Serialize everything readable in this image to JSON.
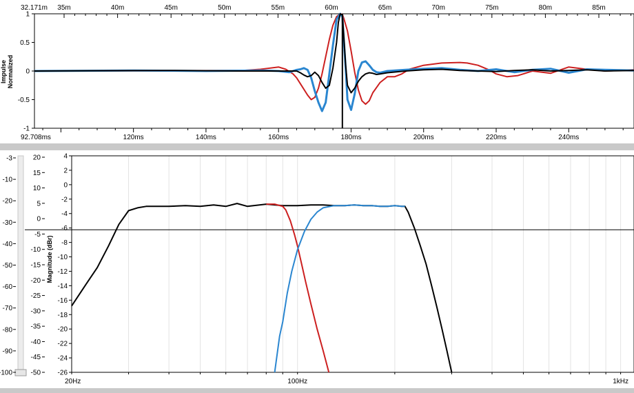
{
  "colors": {
    "red": "#cc1f1f",
    "blue": "#2a86d0",
    "black": "#000000",
    "splitter": "#c9c9c9",
    "grid": "#e3e3e3"
  },
  "chart_data": [
    {
      "type": "line",
      "name": "impulse",
      "ylabel_line1": "Impulse",
      "ylabel_line2": "Normalized",
      "ylim": [
        -1,
        1
      ],
      "y_ticks": [
        "1",
        "0.5",
        "0",
        "-0.5",
        "-1"
      ],
      "top_axis": {
        "unit": "m",
        "first_label": "32.171m",
        "ticks": [
          "35m",
          "40m",
          "45m",
          "50m",
          "55m",
          "60m",
          "65m",
          "70m",
          "75m",
          "80m",
          "85m"
        ]
      },
      "bottom_axis": {
        "unit": "ms",
        "range": [
          92.708,
          258
        ],
        "first_label": "92.708ms",
        "ticks": [
          "120ms",
          "140ms",
          "160ms",
          "180ms",
          "200ms",
          "220ms",
          "240ms"
        ]
      },
      "marker_ms": 177.6,
      "grid": false,
      "series": [
        {
          "color": "red",
          "x": [
            92.708,
            150,
            155,
            160,
            162,
            164,
            165,
            166,
            168,
            169,
            170,
            171,
            172,
            173,
            174,
            175,
            176,
            177,
            177.6,
            178,
            179,
            180,
            181,
            182,
            183,
            184,
            185,
            186,
            188,
            190,
            192,
            194,
            196,
            200,
            205,
            210,
            212,
            215,
            218,
            220,
            223,
            226,
            230,
            235,
            240,
            245,
            250,
            258
          ],
          "y": [
            0,
            0.01,
            0.03,
            0.07,
            0.03,
            -0.05,
            -0.12,
            -0.22,
            -0.42,
            -0.5,
            -0.46,
            -0.3,
            -0.05,
            0.25,
            0.55,
            0.8,
            0.95,
            1,
            0.99,
            0.92,
            0.7,
            0.35,
            -0.02,
            -0.33,
            -0.52,
            -0.58,
            -0.52,
            -0.38,
            -0.2,
            -0.1,
            -0.1,
            -0.05,
            0.03,
            0.1,
            0.14,
            0.15,
            0.14,
            0.1,
            0.02,
            -0.05,
            -0.1,
            -0.08,
            0,
            -0.04,
            0.07,
            0.03,
            0,
            0.02
          ]
        },
        {
          "color": "blue",
          "x": [
            92.708,
            120,
            140,
            155,
            160,
            163,
            165,
            166,
            167,
            168,
            169,
            170,
            171,
            172,
            173,
            174,
            175,
            176,
            177,
            177.6,
            178,
            178.5,
            179,
            180,
            181,
            182,
            183,
            184,
            185,
            186,
            187,
            188,
            190,
            195,
            200,
            205,
            210,
            215,
            220,
            225,
            230,
            235,
            240,
            245,
            250,
            258
          ],
          "y": [
            0,
            0.01,
            0,
            0.01,
            0,
            -0.02,
            0.02,
            0.03,
            0.05,
            0.02,
            -0.12,
            -0.35,
            -0.55,
            -0.7,
            -0.55,
            -0.05,
            0.45,
            0.9,
            1,
            0.95,
            0.55,
            0.05,
            -0.5,
            -0.68,
            -0.4,
            0,
            0.15,
            0.17,
            0.1,
            0.02,
            -0.02,
            -0.03,
            0,
            0.02,
            0.04,
            0.05,
            0.02,
            0,
            0.03,
            -0.02,
            0.02,
            0.04,
            -0.03,
            0.03,
            0.02,
            0.01
          ]
        },
        {
          "color": "black",
          "x": [
            92.708,
            130,
            150,
            160,
            165,
            166,
            167,
            168,
            169,
            170,
            171,
            172,
            173,
            174,
            175,
            176,
            176.5,
            177,
            177.6,
            178,
            178.5,
            179,
            180,
            181,
            182,
            183,
            184,
            185,
            186,
            187,
            188,
            190,
            195,
            200,
            205,
            210,
            215,
            220,
            225,
            230,
            235,
            240,
            245,
            250,
            258
          ],
          "y": [
            0,
            0.01,
            0,
            0,
            0,
            -0.03,
            -0.07,
            -0.1,
            -0.08,
            -0.02,
            -0.08,
            -0.2,
            -0.3,
            -0.25,
            0.05,
            0.5,
            0.85,
            1,
            0.98,
            0.6,
            0.1,
            -0.25,
            -0.38,
            -0.3,
            -0.18,
            -0.1,
            -0.05,
            -0.03,
            -0.04,
            -0.06,
            -0.05,
            -0.03,
            0,
            0.02,
            0.03,
            0.01,
            0,
            -0.01,
            0.01,
            0.02,
            0,
            0.01,
            0.02,
            0,
            0.01
          ]
        }
      ]
    },
    {
      "type": "line",
      "name": "magnitude",
      "ylabel": "Magnitude (dBr)",
      "ylim": [
        -26,
        4
      ],
      "x_scale": "log",
      "xlim": [
        20,
        1100
      ],
      "x_ticks": [
        "20Hz",
        "100Hz",
        "1kHz"
      ],
      "y_ticks": [
        "4",
        "2",
        "0",
        "-2",
        "-4",
        "-6",
        "-8",
        "-10",
        "-12",
        "-14",
        "-16",
        "-18",
        "-20",
        "-22",
        "-24",
        "-26"
      ],
      "left_scale_ticks": [
        "-3",
        "-10",
        "-20",
        "-30",
        "-40",
        "-50",
        "-60",
        "-70",
        "-80",
        "-90",
        "-100"
      ],
      "left_outer_ticks": [
        "20",
        "15",
        "10",
        "5",
        "0",
        "-5",
        "-10",
        "-15",
        "-20",
        "-25",
        "-30",
        "-35",
        "-40",
        "-45",
        "-50"
      ],
      "reference_line_db": -6.25,
      "grid": true,
      "series": [
        {
          "color": "black",
          "x": [
            20,
            22,
            24,
            26,
            28,
            30,
            32,
            34,
            36,
            40,
            45,
            50,
            55,
            60,
            65,
            70,
            80,
            90,
            100,
            110,
            120,
            130,
            140,
            150,
            160,
            170,
            180,
            190,
            200,
            210,
            215,
            220,
            230,
            240,
            250,
            260,
            270,
            280,
            290,
            300
          ],
          "y": [
            -16.8,
            -14,
            -11.5,
            -8.5,
            -5.5,
            -3.6,
            -3.2,
            -3,
            -3,
            -3,
            -2.9,
            -3,
            -2.8,
            -3,
            -2.6,
            -3,
            -2.7,
            -2.9,
            -2.9,
            -2.8,
            -2.8,
            -2.9,
            -2.9,
            -2.8,
            -2.9,
            -2.9,
            -3,
            -3,
            -2.9,
            -3,
            -3,
            -3.8,
            -6,
            -8.5,
            -11,
            -14,
            -17,
            -20,
            -23,
            -26
          ]
        },
        {
          "color": "red",
          "x": [
            80,
            85,
            90,
            92,
            95,
            98,
            100,
            103,
            106,
            110,
            115,
            120,
            125
          ],
          "y": [
            -2.7,
            -2.7,
            -3,
            -3.5,
            -5,
            -7,
            -8.5,
            -11,
            -13.5,
            -16.5,
            -20,
            -23,
            -26
          ]
        },
        {
          "color": "blue",
          "x": [
            85,
            88,
            90,
            93,
            96,
            100,
            105,
            110,
            115,
            120,
            130,
            140,
            150,
            160,
            170,
            180,
            190,
            200,
            210,
            215
          ],
          "y": [
            -26,
            -21,
            -19,
            -15,
            -12,
            -9,
            -6.5,
            -4.8,
            -3.8,
            -3.2,
            -2.9,
            -2.9,
            -2.8,
            -2.9,
            -2.9,
            -3,
            -3,
            -2.9,
            -3,
            -3
          ]
        }
      ]
    }
  ]
}
